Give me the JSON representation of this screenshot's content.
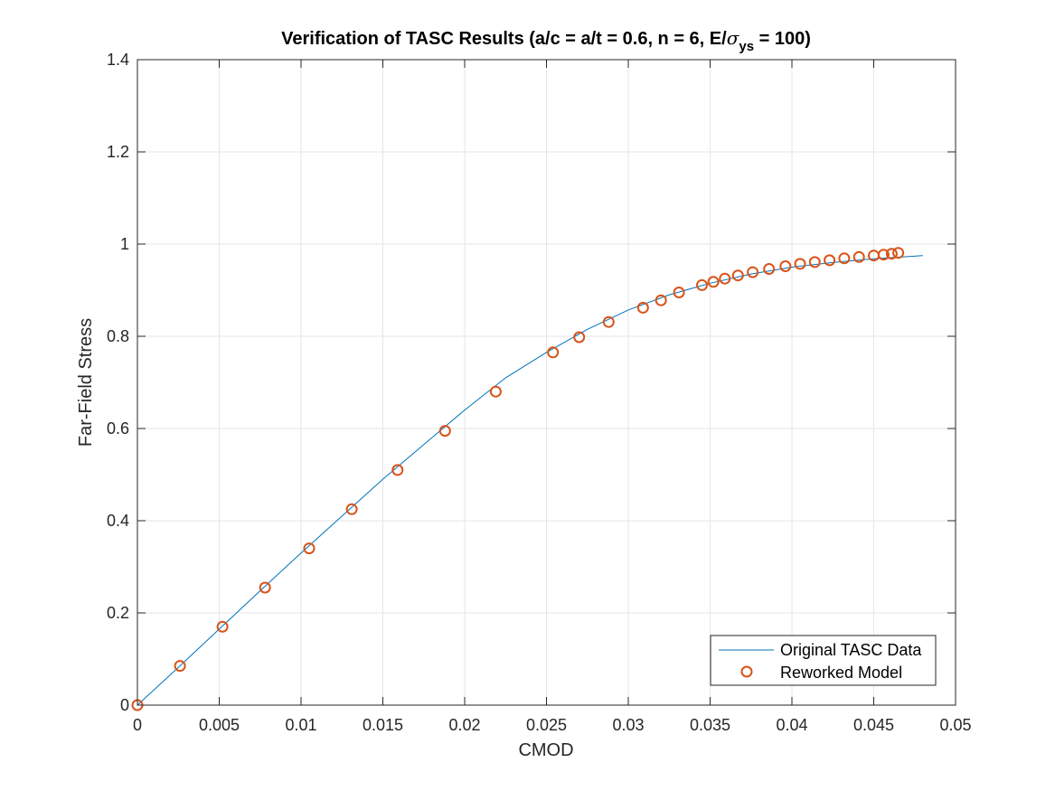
{
  "chart_data": {
    "type": "line",
    "title": {
      "main": "Verification of TASC Results (a/c = a/t = 0.6, n = 6, E/",
      "sigma": "σ",
      "subscript": "ys",
      "tail": " = 100)"
    },
    "xlabel": "CMOD",
    "ylabel": "Far-Field Stress",
    "xlim": [
      0,
      0.05
    ],
    "ylim": [
      0,
      1.4
    ],
    "xticks": [
      0,
      0.005,
      0.01,
      0.015,
      0.02,
      0.025,
      0.03,
      0.035,
      0.04,
      0.045,
      0.05
    ],
    "xtick_labels": [
      "0",
      "0.005",
      "0.01",
      "0.015",
      "0.02",
      "0.025",
      "0.03",
      "0.035",
      "0.04",
      "0.045",
      "0.05"
    ],
    "yticks": [
      0,
      0.2,
      0.4,
      0.6,
      0.8,
      1.0,
      1.2,
      1.4
    ],
    "ytick_labels": [
      "0",
      "0.2",
      "0.4",
      "0.6",
      "0.8",
      "1",
      "1.2",
      "1.4"
    ],
    "grid": true,
    "legend_position": "bottom-right",
    "series": [
      {
        "name": "Original TASC Data",
        "style": "line",
        "color": "#0072BD",
        "x": [
          0,
          0.0025,
          0.005,
          0.0075,
          0.01,
          0.0125,
          0.015,
          0.0175,
          0.02,
          0.0225,
          0.025,
          0.0275,
          0.03,
          0.0325,
          0.035,
          0.0375,
          0.04,
          0.0425,
          0.045,
          0.048
        ],
        "y": [
          0,
          0.082,
          0.165,
          0.248,
          0.33,
          0.41,
          0.49,
          0.565,
          0.64,
          0.71,
          0.765,
          0.815,
          0.857,
          0.89,
          0.915,
          0.935,
          0.95,
          0.96,
          0.968,
          0.975
        ]
      },
      {
        "name": "Reworked Model",
        "style": "marker",
        "marker": "circle",
        "color": "#D95319",
        "x": [
          0,
          0.0026,
          0.0052,
          0.0078,
          0.0105,
          0.0131,
          0.0159,
          0.0188,
          0.0219,
          0.0254,
          0.027,
          0.0288,
          0.0309,
          0.032,
          0.0331,
          0.0345,
          0.0352,
          0.0359,
          0.0367,
          0.0376,
          0.0386,
          0.0396,
          0.0405,
          0.0414,
          0.0423,
          0.0432,
          0.0441,
          0.045,
          0.0456,
          0.0461,
          0.0465
        ],
        "y": [
          0,
          0.085,
          0.17,
          0.255,
          0.34,
          0.425,
          0.51,
          0.595,
          0.68,
          0.765,
          0.798,
          0.831,
          0.862,
          0.878,
          0.895,
          0.911,
          0.918,
          0.925,
          0.932,
          0.939,
          0.946,
          0.952,
          0.957,
          0.961,
          0.965,
          0.969,
          0.972,
          0.975,
          0.977,
          0.979,
          0.981
        ]
      }
    ]
  }
}
